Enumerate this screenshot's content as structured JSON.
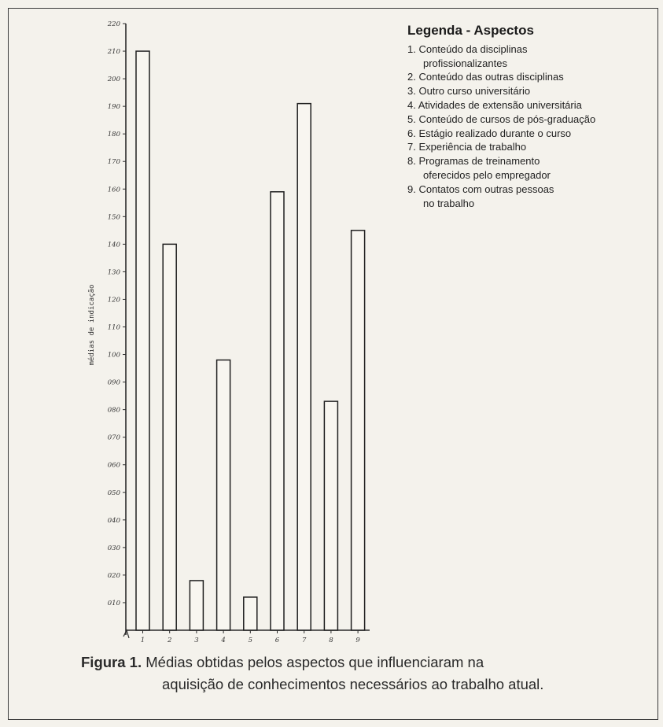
{
  "chart_data": {
    "type": "bar",
    "categories": [
      "1",
      "2",
      "3",
      "4",
      "5",
      "6",
      "7",
      "8",
      "9"
    ],
    "values": [
      2.1,
      1.4,
      0.18,
      0.98,
      0.12,
      1.59,
      1.91,
      0.83,
      1.45
    ],
    "yticks": [
      {
        "value": 0.1,
        "label": "010"
      },
      {
        "value": 0.2,
        "label": "020"
      },
      {
        "value": 0.3,
        "label": "030"
      },
      {
        "value": 0.4,
        "label": "040"
      },
      {
        "value": 0.5,
        "label": "050"
      },
      {
        "value": 0.6,
        "label": "060"
      },
      {
        "value": 0.7,
        "label": "070"
      },
      {
        "value": 0.8,
        "label": "080"
      },
      {
        "value": 0.9,
        "label": "090"
      },
      {
        "value": 1.0,
        "label": "100"
      },
      {
        "value": 1.1,
        "label": "110"
      },
      {
        "value": 1.2,
        "label": "120"
      },
      {
        "value": 1.3,
        "label": "130"
      },
      {
        "value": 1.4,
        "label": "140"
      },
      {
        "value": 1.5,
        "label": "150"
      },
      {
        "value": 1.6,
        "label": "160"
      },
      {
        "value": 1.7,
        "label": "170"
      },
      {
        "value": 1.8,
        "label": "180"
      },
      {
        "value": 1.9,
        "label": "190"
      },
      {
        "value": 2.0,
        "label": "200"
      },
      {
        "value": 2.1,
        "label": "210"
      },
      {
        "value": 2.2,
        "label": "220"
      }
    ],
    "ylim": [
      0,
      2.2
    ],
    "ylabel": "médias de indicação",
    "xlabel": "",
    "grid": false,
    "legend": {
      "title": "Legenda - Aspectos",
      "items": [
        [
          "1. Conteúdo da disciplinas",
          "profissionalizantes"
        ],
        [
          "2. Conteúdo das outras disciplinas"
        ],
        [
          "3. Outro curso universitário"
        ],
        [
          "4. Atividades de extensão universitária"
        ],
        [
          "5. Conteúdo de cursos de pós-graduação"
        ],
        [
          "6. Estágio realizado durante o curso"
        ],
        [
          "7. Experiência de trabalho"
        ],
        [
          "8. Programas de treinamento",
          "oferecidos  pelo empregador"
        ],
        [
          "9. Contatos com outras pessoas",
          "no trabalho"
        ]
      ]
    }
  },
  "caption": {
    "label": "Figura 1.",
    "line1": " Médias obtidas pelos aspectos que influenciaram na",
    "line2": "aquisição de conhecimentos necessários ao trabalho atual."
  }
}
